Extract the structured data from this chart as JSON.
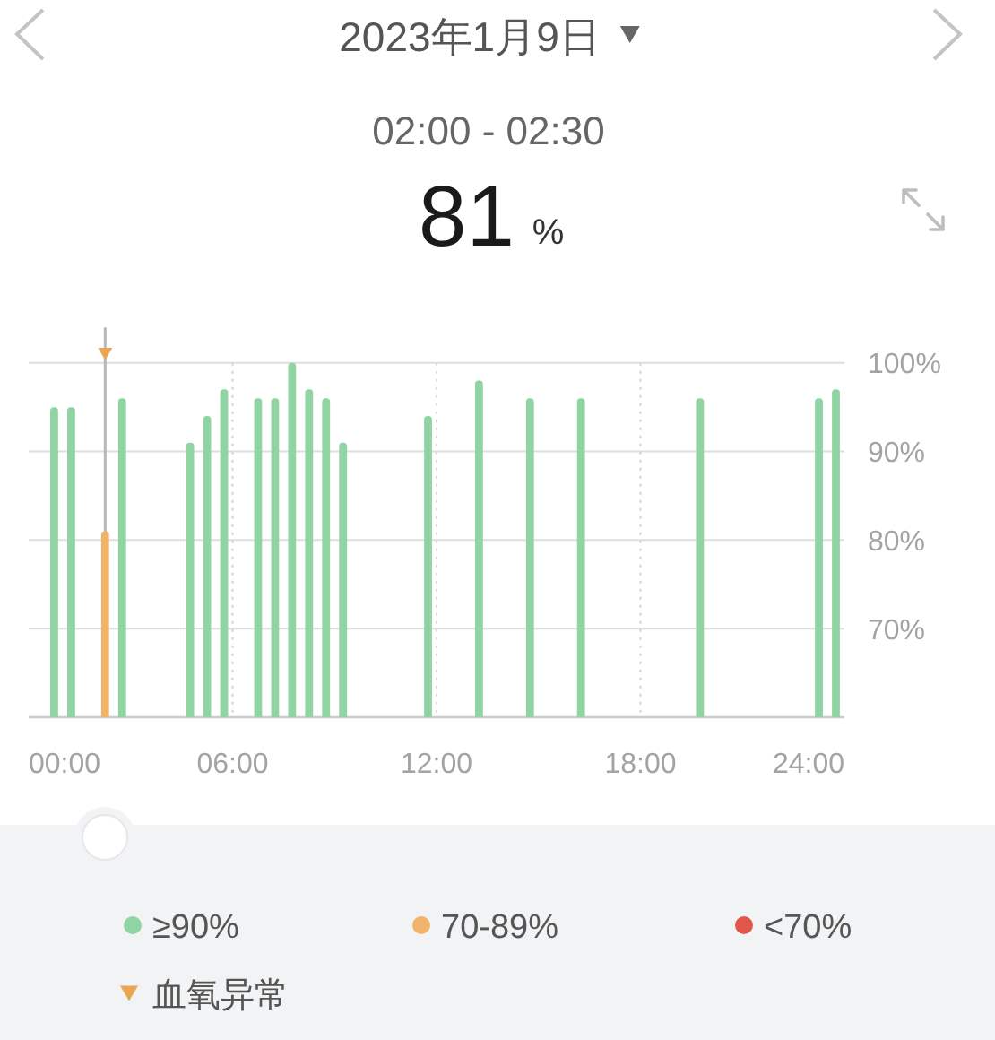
{
  "chart_data": {
    "type": "bar",
    "title": "2023年1月9日",
    "subtitle": "02:00 - 02:30",
    "annotations": [
      "81",
      "%"
    ],
    "xlim": [
      0,
      24
    ],
    "xticks": [
      {
        "value": 0,
        "label": "00:00"
      },
      {
        "value": 6,
        "label": "06:00"
      },
      {
        "value": 12,
        "label": "12:00"
      },
      {
        "value": 18,
        "label": "18:00"
      },
      {
        "value": 24,
        "label": "24:00"
      }
    ],
    "ylim": [
      60,
      104
    ],
    "yticks": [
      {
        "value": 70,
        "label": "70%"
      },
      {
        "value": 80,
        "label": "80%"
      },
      {
        "value": 90,
        "label": "90%"
      },
      {
        "value": 100,
        "label": "100%"
      }
    ],
    "grid": true,
    "legend": "bottom",
    "marker": "triangle",
    "ref_lines": [
      {
        "axis": "x",
        "value": 2.25,
        "color": "#b8b8b8"
      }
    ],
    "series": [
      {
        "name": "≥90%",
        "color": "#8fd4a2",
        "x": [
          0.75,
          1.25,
          2.75,
          4.75,
          5.25,
          5.75,
          6.75,
          7.25,
          7.75,
          8.25,
          8.75,
          9.25,
          11.75,
          13.25,
          14.75,
          16.25,
          19.75,
          23.25,
          23.75
        ],
        "values": [
          95,
          95,
          96,
          91,
          94,
          97,
          96,
          96,
          100,
          97,
          96,
          91,
          94,
          98,
          96,
          96,
          96,
          96,
          97
        ]
      },
      {
        "name": "70-89%",
        "color": "#f0b36c",
        "x": [
          2.25
        ],
        "values": [
          81
        ]
      },
      {
        "name": "<70%",
        "color": "#e0564b"
      },
      {
        "name": "血氧异常",
        "type": "scatter",
        "color": "#eaa654",
        "x": [
          2.25
        ],
        "values": [
          101
        ]
      }
    ]
  }
}
